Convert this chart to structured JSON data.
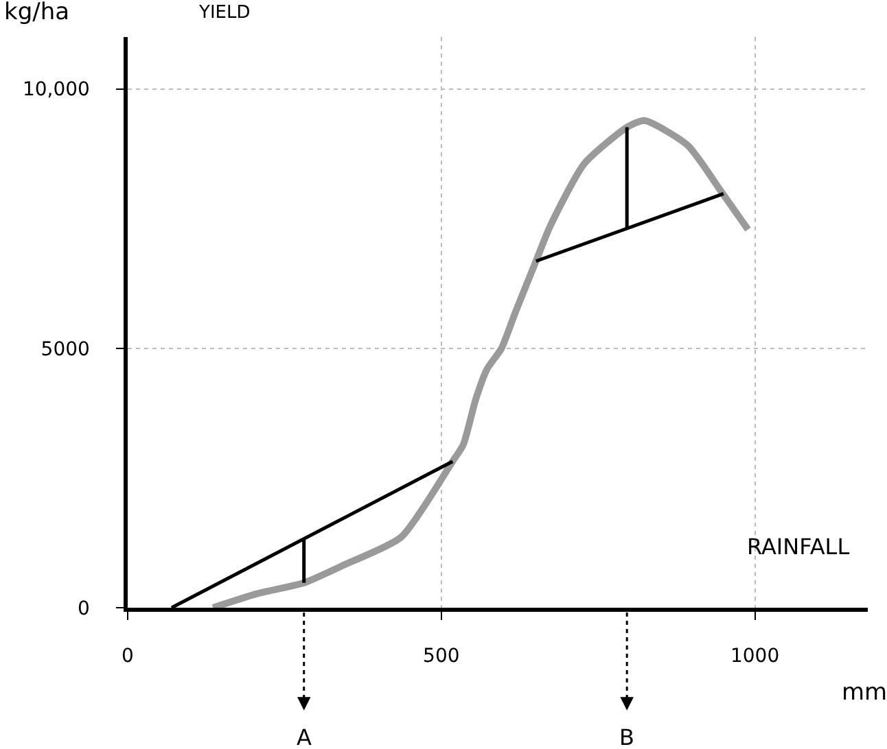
{
  "chart_data": {
    "type": "line",
    "xlabel": "mm",
    "ylabel": "kg/ha",
    "annotations": [
      "YIELD",
      "RAINFALL"
    ],
    "series": [
      {
        "color": "#9a9a9a",
        "x": [
          136,
          206,
          281,
          344,
          436,
          518,
          535,
          555,
          573,
          596,
          618,
          651,
          673,
          728,
          796,
          824,
          893,
          947,
          989
        ],
        "values": [
          0,
          270,
          480,
          820,
          1360,
          2820,
          3140,
          4020,
          4600,
          5000,
          5690,
          6680,
          7340,
          8560,
          9260,
          9390,
          8910,
          8010,
          7290
        ]
      },
      {
        "color": "#000000",
        "x": [
          70,
          518
        ],
        "values": [
          0,
          2820
        ]
      },
      {
        "color": "#000000",
        "x": [
          651,
          950
        ],
        "values": [
          6680,
          7980
        ]
      },
      {
        "color": "#000000",
        "x": [
          281,
          281
        ],
        "values": [
          480,
          1330
        ]
      },
      {
        "color": "#000000",
        "x": [
          796,
          796
        ],
        "values": [
          7310,
          9260
        ]
      }
    ],
    "xlim": [
      0,
      1180
    ],
    "ylim": [
      0,
      11000
    ],
    "xticks": [
      0,
      500,
      1000
    ],
    "yticks": [
      0,
      5000,
      {
        "value": 10000,
        "label": "10,000"
      }
    ],
    "grid": true,
    "ref_lines": [
      {
        "axis": "x",
        "value": 281,
        "label": "A",
        "line_style": "dotted"
      },
      {
        "axis": "x",
        "value": 796,
        "label": "B",
        "line_style": "dotted"
      }
    ]
  }
}
